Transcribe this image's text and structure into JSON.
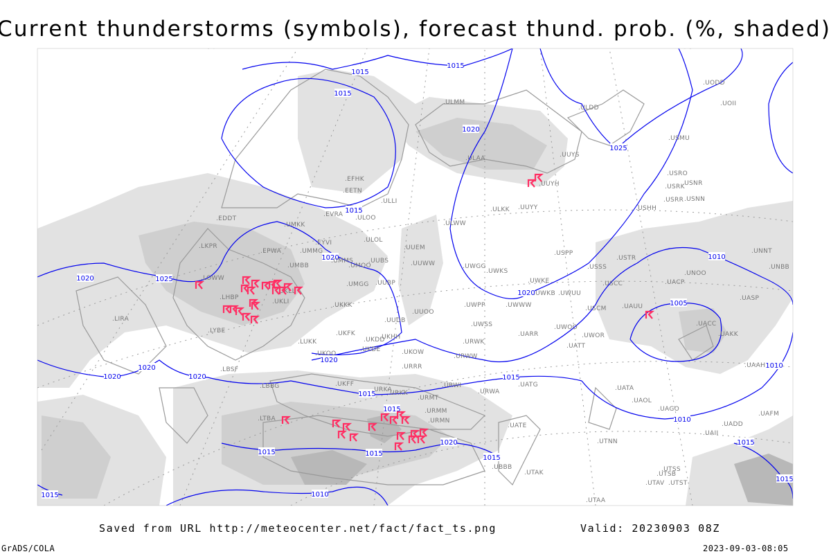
{
  "title": "Current thunderstorms (symbols), forecast thund. prob. (%, shaded)",
  "footer": {
    "saved_from": "Saved from URL http://meteocenter.net/fact/fact_ts.png",
    "valid": "Valid: 20230903 08Z",
    "software": "GrADS/COLA",
    "generated": "2023-09-03-08:05"
  },
  "legend": {
    "symbol": "thunderstorm-symbol",
    "shading": "thunderstorm-probability-percent"
  },
  "colors": {
    "isobar": "#0000ee",
    "thunderstorm_symbol": "#ff2e63",
    "shade_light": "#e2e2e2",
    "shade_mid": "#cfcfcf",
    "shade_dark": "#b8b8b8",
    "coastline": "#999999",
    "station_label": "#777777"
  },
  "isobar_labels": [
    "1015",
    "1015",
    "1015",
    "1020",
    "1025",
    "1015",
    "1020",
    "1020",
    "1025",
    "1020",
    "1010",
    "1005",
    "1010",
    "1020",
    "1020",
    "1020",
    "1020",
    "1015",
    "1015",
    "1015",
    "1020",
    "1015",
    "1015",
    "1015",
    "1010",
    "1015",
    "1015",
    "1010",
    "1015"
  ],
  "stations": [
    "ULMM",
    "ULDD",
    "UODD",
    "UOII",
    "USMU",
    "UUYS",
    "ULAA",
    "UUYH",
    "USRO",
    "USNR",
    "USRK",
    "USRR",
    "USNN",
    "USHH",
    "ULKK",
    "UUYY",
    "ULWW",
    "USPP",
    "USTR",
    "USSS",
    "UNOO",
    "UNNT",
    "UNBB",
    "UWGG",
    "UWKS",
    "UWKE",
    "UWKB",
    "UWUU",
    "UWWW",
    "UWPP",
    "USCC",
    "UACP",
    "UASP",
    "UACC",
    "UAKK",
    "UAAH",
    "USCM",
    "UAUU",
    "UWOO",
    "UWOR",
    "UATT",
    "UARR",
    "UWSS",
    "URWK",
    "URWW",
    "UUOO",
    "UUDB",
    "UKHH",
    "UKDD",
    "UKFK",
    "UKDE",
    "UKOW",
    "URRR",
    "LUKK",
    "UKOO",
    "UKKK",
    "UMGG",
    "UUBP",
    "UMMS",
    "UMOO",
    "UUBS",
    "UUEM",
    "UUWW",
    "ULOL",
    "ULOO",
    "EVRA",
    "UMKK",
    "EYVI",
    "UMMG",
    "UMBB",
    "EPWA",
    "LKPR",
    "LOWW",
    "LHBP",
    "UKLL",
    "UKLI",
    "LYBE",
    "LBSF",
    "LBBG",
    "LIRA",
    "LTBA",
    "EFHK",
    "EETN",
    "ULLI",
    "EDDT",
    "URKK",
    "URMT",
    "URWI",
    "URWA",
    "UATG",
    "UKFF",
    "URKA",
    "URMM",
    "URMN",
    "UATE",
    "UTAK",
    "UTNN",
    "UTSS",
    "UTSB",
    "UTAV",
    "UTST",
    "UTAA",
    "UBBB",
    "UAOL",
    "UAGO",
    "UATA",
    "UADD",
    "UAFM",
    "UAII"
  ]
}
